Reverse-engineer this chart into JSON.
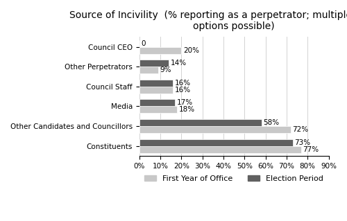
{
  "title": "Source of Incivility  (% reporting as a perpetrator; multiple response\noptions possible)",
  "categories": [
    "Council CEO",
    "Other Perpetrators",
    "Council Staff",
    "Media",
    "Other Candidates and Councillors",
    "Constituents"
  ],
  "first_year": [
    20,
    9,
    16,
    18,
    72,
    77
  ],
  "election_period": [
    0,
    14,
    16,
    17,
    58,
    73
  ],
  "first_year_labels": [
    "20%",
    "9%",
    "16%",
    "18%",
    "72%",
    "77%"
  ],
  "election_period_labels": [
    "0",
    "14%",
    "16%",
    "17%",
    "58%",
    "73%"
  ],
  "first_year_color": "#c8c8c8",
  "election_period_color": "#606060",
  "xlim": [
    0,
    90
  ],
  "xticks": [
    0,
    10,
    20,
    30,
    40,
    50,
    60,
    70,
    80,
    90
  ],
  "xtick_labels": [
    "0%",
    "10%",
    "20%",
    "30%",
    "40%",
    "50%",
    "60%",
    "70%",
    "80%",
    "90%"
  ],
  "legend_first_year": "First Year of Office",
  "legend_election": "Election Period",
  "bar_height": 0.35,
  "title_fontsize": 10,
  "label_fontsize": 7.5,
  "tick_fontsize": 7.5,
  "legend_fontsize": 8
}
